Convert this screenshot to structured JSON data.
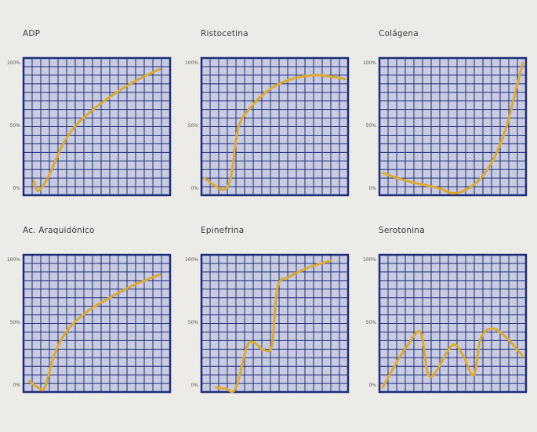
{
  "colors": {
    "background": "#ecebe8",
    "plot_fill": "#c9cce0",
    "grid": "#1d2d7a",
    "line": "#dcaa30"
  },
  "chart_data": [
    {
      "type": "line",
      "title": "ADP",
      "y_ticks": [
        "0%",
        "50%",
        "100%"
      ],
      "ylim": [
        0,
        100
      ],
      "xlim": [
        0,
        1
      ],
      "grid": true,
      "points": [
        [
          0.05,
          6
        ],
        [
          0.08,
          -2
        ],
        [
          0.15,
          8
        ],
        [
          0.25,
          33
        ],
        [
          0.35,
          50
        ],
        [
          0.5,
          65
        ],
        [
          0.65,
          77
        ],
        [
          0.8,
          87
        ],
        [
          0.95,
          95
        ]
      ]
    },
    {
      "type": "line",
      "title": "Ristocetina",
      "y_ticks": [
        "0%",
        "50%",
        "100%"
      ],
      "ylim": [
        0,
        100
      ],
      "xlim": [
        0,
        1
      ],
      "grid": true,
      "points": [
        [
          0.0,
          8
        ],
        [
          0.06,
          3
        ],
        [
          0.14,
          -1
        ],
        [
          0.19,
          10
        ],
        [
          0.24,
          48
        ],
        [
          0.34,
          66
        ],
        [
          0.48,
          80
        ],
        [
          0.62,
          87
        ],
        [
          0.78,
          90
        ],
        [
          0.9,
          89
        ],
        [
          1.0,
          87
        ]
      ]
    },
    {
      "type": "line",
      "title": "Colágena",
      "y_ticks": [
        "0%",
        "50%",
        "100%"
      ],
      "ylim": [
        0,
        100
      ],
      "xlim": [
        0,
        1
      ],
      "grid": true,
      "points": [
        [
          0.0,
          12
        ],
        [
          0.2,
          5
        ],
        [
          0.4,
          0
        ],
        [
          0.5,
          -4
        ],
        [
          0.6,
          -1
        ],
        [
          0.7,
          8
        ],
        [
          0.8,
          25
        ],
        [
          0.88,
          48
        ],
        [
          0.95,
          78
        ],
        [
          1.0,
          100
        ]
      ]
    },
    {
      "type": "line",
      "title": "Ac. Araquidónico",
      "y_ticks": [
        "0%",
        "50%",
        "100%"
      ],
      "ylim": [
        0,
        100
      ],
      "xlim": [
        0,
        1
      ],
      "grid": true,
      "points": [
        [
          0.02,
          3
        ],
        [
          0.08,
          -2
        ],
        [
          0.13,
          -2
        ],
        [
          0.2,
          25
        ],
        [
          0.3,
          45
        ],
        [
          0.45,
          60
        ],
        [
          0.6,
          70
        ],
        [
          0.75,
          79
        ],
        [
          0.95,
          88
        ]
      ]
    },
    {
      "type": "line",
      "title": "Epinefrina",
      "y_ticks": [
        "0%",
        "50%",
        "100%"
      ],
      "ylim": [
        0,
        100
      ],
      "xlim": [
        0,
        1
      ],
      "grid": true,
      "points": [
        [
          0.08,
          -2
        ],
        [
          0.15,
          -3
        ],
        [
          0.22,
          -3
        ],
        [
          0.3,
          30
        ],
        [
          0.35,
          34
        ],
        [
          0.42,
          28
        ],
        [
          0.48,
          32
        ],
        [
          0.52,
          78
        ],
        [
          0.6,
          86
        ],
        [
          0.75,
          94
        ],
        [
          0.9,
          99
        ]
      ]
    },
    {
      "type": "line",
      "title": "Serotonina",
      "y_ticks": [
        "0%",
        "50%",
        "100%"
      ],
      "ylim": [
        0,
        100
      ],
      "xlim": [
        0,
        1
      ],
      "grid": true,
      "points": [
        [
          0.0,
          -2
        ],
        [
          0.1,
          18
        ],
        [
          0.18,
          32
        ],
        [
          0.27,
          42
        ],
        [
          0.32,
          10
        ],
        [
          0.37,
          9
        ],
        [
          0.47,
          28
        ],
        [
          0.52,
          32
        ],
        [
          0.58,
          22
        ],
        [
          0.65,
          8
        ],
        [
          0.7,
          37
        ],
        [
          0.78,
          45
        ],
        [
          0.88,
          38
        ],
        [
          1.0,
          23
        ]
      ]
    }
  ]
}
